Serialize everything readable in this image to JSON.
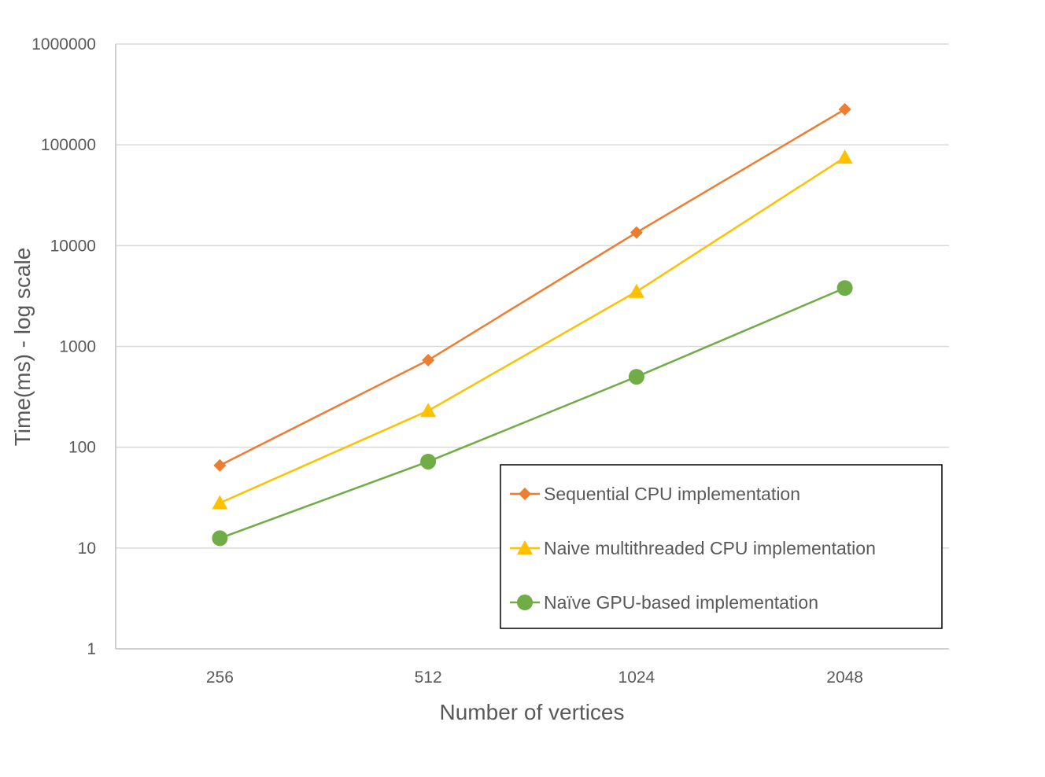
{
  "chart_data": {
    "type": "line",
    "title": "",
    "xlabel": "Number of vertices",
    "ylabel": "Time(ms) - log scale",
    "yscale": "log",
    "ylim": [
      1,
      1000000
    ],
    "y_ticks": [
      "1",
      "10",
      "100",
      "1000",
      "10000",
      "100000",
      "1000000"
    ],
    "categories": [
      "256",
      "512",
      "1024",
      "2048"
    ],
    "grid": "horizontal",
    "legend_position": "bottom-right",
    "series": [
      {
        "name": "Sequential CPU implementation",
        "color": "#ED7D31",
        "marker": "diamond",
        "values": [
          66,
          730,
          13500,
          225000
        ]
      },
      {
        "name": "Naive multithreaded CPU implementation",
        "color": "#FFC000",
        "marker": "triangle",
        "values": [
          28,
          230,
          3500,
          75000
        ]
      },
      {
        "name": "Naïve GPU-based implementation",
        "color": "#70AD47",
        "marker": "circle",
        "values": [
          12.5,
          72,
          500,
          3800
        ]
      }
    ]
  }
}
